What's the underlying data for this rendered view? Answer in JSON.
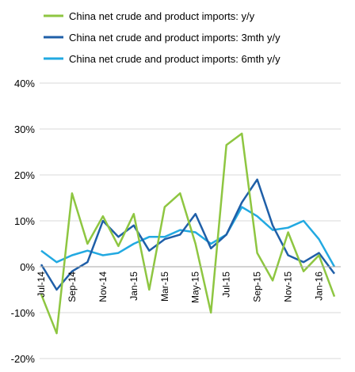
{
  "chart_data": {
    "type": "line",
    "title": "",
    "xlabel": "",
    "ylabel": "",
    "categories": [
      "Jul-14",
      "Aug-14",
      "Sep-14",
      "Oct-14",
      "Nov-14",
      "Dec-14",
      "Jan-15",
      "Feb-15",
      "Mar-15",
      "Apr-15",
      "May-15",
      "Jun-15",
      "Jul-15",
      "Aug-15",
      "Sep-15",
      "Oct-15",
      "Nov-15",
      "Dec-15",
      "Jan-16",
      "Feb-16"
    ],
    "x_tick_labels": [
      "Jul-14",
      "Sep-14",
      "Nov-14",
      "Jan-15",
      "Mar-15",
      "May-15",
      "Jul-15",
      "Sep-15",
      "Nov-15",
      "Jan-16"
    ],
    "x_tick_indices": [
      0,
      2,
      4,
      6,
      8,
      10,
      12,
      14,
      16,
      18
    ],
    "ylim": [
      -20,
      40
    ],
    "y_ticks": [
      -20,
      -10,
      0,
      10,
      20,
      30,
      40
    ],
    "y_tick_labels": [
      "-20%",
      "-10%",
      "0%",
      "10%",
      "20%",
      "30%",
      "40%"
    ],
    "grid": "horizontal",
    "legend_position": "top",
    "series": [
      {
        "name": "China net crude and product imports: y/y",
        "color": "#8ec641",
        "values": [
          -6,
          -14.5,
          16,
          5,
          11,
          4.5,
          11.5,
          -5,
          13,
          16,
          5,
          -10,
          26.5,
          29,
          3,
          -3,
          7.5,
          -1,
          2.5,
          -6.5
        ]
      },
      {
        "name": "China net crude and product imports: 3mth y/y",
        "color": "#1f5fa8",
        "values": [
          0.5,
          -5,
          -1,
          1,
          10,
          6.5,
          9,
          3.5,
          6,
          7,
          11.5,
          4,
          7,
          14,
          19,
          9,
          2.5,
          1,
          3,
          -1.5
        ]
      },
      {
        "name": "China net crude and product imports: 6mth y/y",
        "color": "#22a9e1",
        "values": [
          3.5,
          1,
          2.5,
          3.5,
          2.5,
          3,
          5,
          6.5,
          6.5,
          8,
          7.5,
          5,
          7,
          13,
          11,
          8,
          8.5,
          10,
          6,
          0
        ]
      }
    ]
  }
}
